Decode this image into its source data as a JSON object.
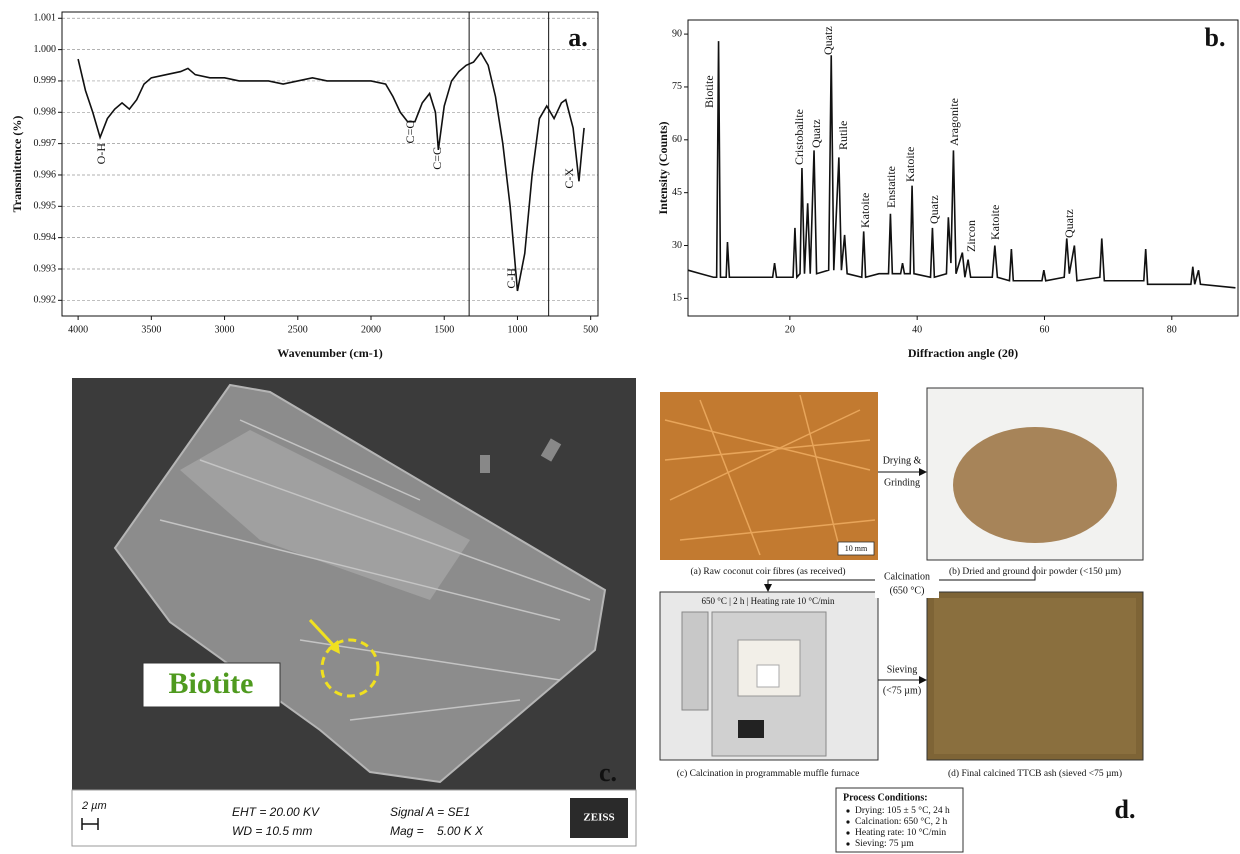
{
  "chart_data": [
    {
      "type": "line",
      "panel_label": "a.",
      "x_label": "Wavenumber (cm-1)",
      "y_label": "Transmittence (%)",
      "xlim": [
        4110,
        450
      ],
      "ylim": [
        0.9915,
        1.0012
      ],
      "grid": true,
      "color": "#111111",
      "xticks": [
        4000,
        3500,
        3000,
        2500,
        2000,
        1500,
        1000,
        500
      ],
      "yticks": [
        0.992,
        0.993,
        0.994,
        0.995,
        0.996,
        0.997,
        0.998,
        0.999,
        {
          "value": 1,
          "label": "1.000"
        },
        1.001
      ],
      "x": [
        4000,
        3950,
        3900,
        3850,
        3800,
        3750,
        3700,
        3650,
        3600,
        3550,
        3500,
        3400,
        3300,
        3250,
        3200,
        3100,
        3000,
        2900,
        2800,
        2700,
        2600,
        2500,
        2400,
        2300,
        2200,
        2100,
        2000,
        1900,
        1850,
        1800,
        1750,
        1700,
        1650,
        1600,
        1560,
        1540,
        1500,
        1450,
        1400,
        1350,
        1300,
        1250,
        1200,
        1150,
        1100,
        1050,
        1000,
        950,
        900,
        850,
        800,
        750,
        700,
        670,
        620,
        580,
        560,
        545
      ],
      "values": [
        0.9997,
        0.9987,
        0.998,
        0.9972,
        0.9978,
        0.9981,
        0.9983,
        0.9981,
        0.9984,
        0.9989,
        0.9991,
        0.9992,
        0.9993,
        0.9994,
        0.9992,
        0.9991,
        0.9991,
        0.999,
        0.999,
        0.999,
        0.9989,
        0.999,
        0.9991,
        0.999,
        0.999,
        0.999,
        0.999,
        0.9989,
        0.9985,
        0.998,
        0.9977,
        0.9977,
        0.9983,
        0.9986,
        0.998,
        0.9968,
        0.9982,
        0.999,
        0.9993,
        0.9995,
        0.9996,
        0.9999,
        0.9995,
        0.9985,
        0.997,
        0.995,
        0.9923,
        0.9935,
        0.996,
        0.9978,
        0.9982,
        0.9978,
        0.9983,
        0.9984,
        0.9975,
        0.9958,
        0.9968,
        0.9975
      ],
      "reference_lines": [
        1330,
        787
      ],
      "annotations": [
        "O-H",
        "C=O",
        "C=C",
        "C-H",
        "C-X"
      ]
    },
    {
      "type": "line",
      "panel_label": "b.",
      "x_label": "Diffraction angle (2θ)",
      "y_label": "Intensity (Counts)",
      "xlim": [
        4,
        90.4
      ],
      "ylim": [
        10,
        94
      ],
      "grid": false,
      "color": "#111111",
      "xticks": [
        20,
        40,
        60,
        80
      ],
      "yticks": [
        15,
        30,
        45,
        60,
        75,
        90
      ],
      "x": [
        4,
        6,
        8,
        8.5,
        8.8,
        9.1,
        10,
        10.2,
        10.5,
        13,
        17.3,
        17.6,
        17.9,
        20.5,
        20.8,
        21.1,
        21.6,
        21.9,
        22.3,
        22.8,
        23.2,
        23.8,
        24.2,
        26.1,
        26.5,
        26.9,
        27.7,
        28.1,
        28.6,
        29,
        31.3,
        31.6,
        31.9,
        34,
        35.5,
        35.8,
        36.1,
        37.4,
        37.7,
        38,
        38.9,
        39.2,
        39.5,
        42.1,
        42.4,
        42.7,
        44.6,
        44.9,
        45.3,
        45.7,
        46.1,
        47.1,
        47.5,
        48,
        48.4,
        51.8,
        52.2,
        52.6,
        54.5,
        54.8,
        55.1,
        59.6,
        59.9,
        60.2,
        63.1,
        63.5,
        63.9,
        64.7,
        65.1,
        68.7,
        69,
        69.4,
        75.6,
        75.9,
        76.2,
        83,
        83.3,
        83.6,
        84.2,
        84.5,
        90
      ],
      "values": [
        23,
        22,
        21,
        21,
        88,
        21,
        21,
        31,
        21,
        21,
        21,
        25,
        21,
        21,
        35,
        21,
        22,
        52,
        22,
        42,
        22,
        57,
        22,
        23,
        84,
        23,
        55,
        23,
        33,
        22,
        21,
        34,
        21,
        22,
        22,
        39,
        22,
        22,
        25,
        22,
        22,
        47,
        22,
        21,
        35,
        21,
        22,
        38,
        25,
        57,
        22,
        28,
        21,
        26,
        21,
        21,
        30,
        21,
        20,
        29,
        20,
        20,
        23,
        20,
        21,
        32,
        22,
        30,
        20,
        21,
        32,
        20,
        20,
        29,
        19,
        19,
        24,
        19,
        23,
        19,
        18
      ],
      "annotations": [
        "Biotite",
        "Cristobalite",
        "Quatz",
        "Quatz",
        "Rutile",
        "Katoite",
        "Enstatite",
        "Katoite",
        "Quatz",
        "Aragonite",
        "Zircon",
        "Katoite",
        "Quatz"
      ]
    }
  ],
  "panel_c": {
    "label": "Biotite",
    "panel_label": "c.",
    "scale_bar": "2 µm",
    "info": [
      "EHT = 20.00 KV",
      "WD = 10.5 mm",
      "Signal A = SE1",
      "Mag =    5.00 K X"
    ],
    "logo": "ZEISS"
  },
  "panel_d": {
    "panel_label": "d.",
    "captions": [
      "(a) Raw coconut coir fibres (as received)",
      "(b) Dried and ground coir powder (<150 µm)",
      "(c) Calcination in programmable muffle furnace",
      "(d) Final calcined TTCB ash (sieved <75 µm)"
    ],
    "scale": "10 mm",
    "furnace_note": "650 °C | 2 h | Heating rate 10 °C/min",
    "step1": [
      "Drying &",
      "Grinding"
    ],
    "step2": [
      "Calcination",
      "(650 °C)"
    ],
    "step3": [
      "Sieving",
      "(<75 µm)"
    ],
    "conditions": {
      "title": "Process Conditions:",
      "items": [
        "Drying: 105 ± 5 °C, 24 h",
        "Calcination: 650 °C, 2 h",
        "Heating rate: 10 °C/min",
        "Sieving: 75 µm"
      ]
    }
  }
}
